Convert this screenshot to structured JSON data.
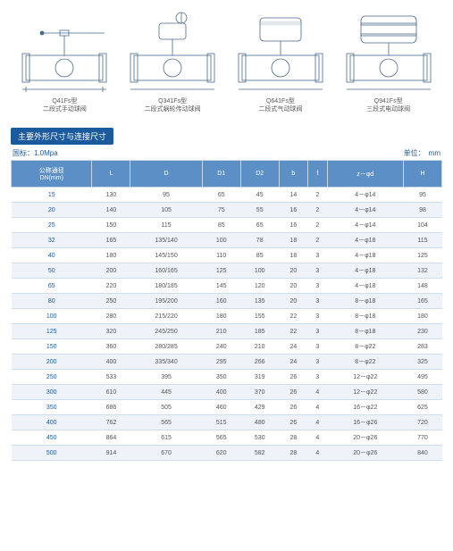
{
  "diagrams": [
    {
      "code": "Q41Fs型",
      "desc": "二段式手动球阀"
    },
    {
      "code": "Q341Fs型",
      "desc": "二段式蜗轮传动球阀"
    },
    {
      "code": "Q641Fs型",
      "desc": "二段式气动球阀"
    },
    {
      "code": "Q941Fs型",
      "desc": "三段式电动球阀"
    }
  ],
  "section_title": "主要外形尺寸与连接尺寸",
  "standard": "国标：1.0Mpa",
  "unit_label": "单位：　mm",
  "columns": [
    "公称通径\nDN(mm)",
    "L",
    "D",
    "D1",
    "D2",
    "b",
    "f",
    "z－φd",
    "H"
  ],
  "rows": [
    [
      "15",
      "130",
      "95",
      "65",
      "45",
      "14",
      "2",
      "4－φ14",
      "95"
    ],
    [
      "20",
      "140",
      "105",
      "75",
      "55",
      "16",
      "2",
      "4－φ14",
      "98"
    ],
    [
      "25",
      "150",
      "115",
      "85",
      "65",
      "16",
      "2",
      "4－φ14",
      "104"
    ],
    [
      "32",
      "165",
      "135/140",
      "100",
      "78",
      "18",
      "2",
      "4－φ18",
      "115"
    ],
    [
      "40",
      "180",
      "145/150",
      "110",
      "85",
      "18",
      "3",
      "4－φ18",
      "125"
    ],
    [
      "50",
      "200",
      "160/165",
      "125",
      "100",
      "20",
      "3",
      "4－φ18",
      "132"
    ],
    [
      "65",
      "220",
      "180/185",
      "145",
      "120",
      "20",
      "3",
      "4－φ18",
      "148"
    ],
    [
      "80",
      "250",
      "195/200",
      "160",
      "135",
      "20",
      "3",
      "8－φ18",
      "165"
    ],
    [
      "100",
      "280",
      "215/220",
      "180",
      "155",
      "22",
      "3",
      "8－φ18",
      "180"
    ],
    [
      "125",
      "320",
      "245/250",
      "210",
      "185",
      "22",
      "3",
      "8－φ18",
      "230"
    ],
    [
      "150",
      "360",
      "280/285",
      "240",
      "210",
      "24",
      "3",
      "8－φ22",
      "283"
    ],
    [
      "200",
      "400",
      "335/340",
      "295",
      "266",
      "24",
      "3",
      "8－φ22",
      "325"
    ],
    [
      "250",
      "533",
      "395",
      "350",
      "319",
      "26",
      "3",
      "12－φ22",
      "495"
    ],
    [
      "300",
      "610",
      "445",
      "400",
      "370",
      "26",
      "4",
      "12－φ22",
      "580"
    ],
    [
      "350",
      "686",
      "505",
      "460",
      "429",
      "26",
      "4",
      "16－φ22",
      "625"
    ],
    [
      "400",
      "762",
      "565",
      "515",
      "480",
      "26",
      "4",
      "16－φ26",
      "720"
    ],
    [
      "450",
      "864",
      "615",
      "565",
      "530",
      "28",
      "4",
      "20－φ26",
      "770"
    ],
    [
      "500",
      "914",
      "670",
      "620",
      "582",
      "28",
      "4",
      "20－φ26",
      "840"
    ]
  ],
  "colors": {
    "ink": "#4a6a8a"
  }
}
